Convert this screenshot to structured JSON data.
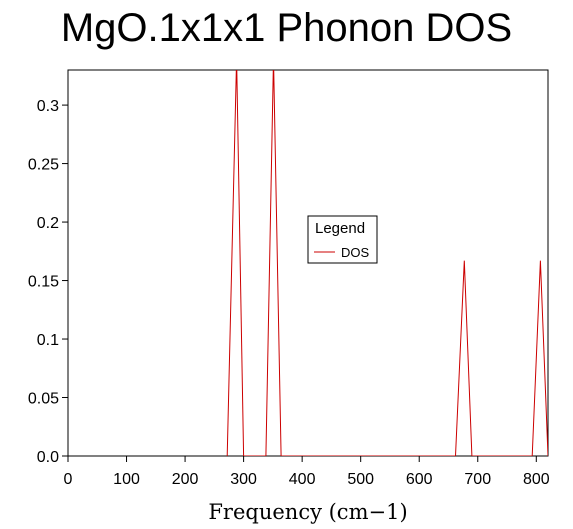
{
  "chart_data": {
    "type": "line",
    "title": "MgO.1x1x1 Phonon DOS",
    "xlabel": "Frequency (cm−1)",
    "ylabel": "",
    "xlim": [
      0,
      820
    ],
    "ylim": [
      0,
      0.33
    ],
    "x_ticks": [
      0,
      100,
      200,
      300,
      400,
      500,
      600,
      700,
      800
    ],
    "y_ticks": [
      0,
      0.05,
      0.1,
      0.15,
      0.2,
      0.25,
      0.3
    ],
    "y_tick_labels": [
      "0.0",
      "0.05",
      "0.1",
      "0.15",
      "0.2",
      "0.25",
      "0.3"
    ],
    "grid": false,
    "legend": {
      "title": "Legend",
      "placement": "center-right"
    },
    "series": [
      {
        "name": "DOS",
        "color": "#cc0000",
        "x": [
          272,
          288,
          300,
          338,
          351,
          364,
          662,
          677,
          690,
          793,
          807,
          820
        ],
        "y": [
          0,
          0.34,
          0,
          0,
          0.34,
          0,
          0,
          0.167,
          0,
          0,
          0.167,
          0
        ]
      }
    ]
  }
}
